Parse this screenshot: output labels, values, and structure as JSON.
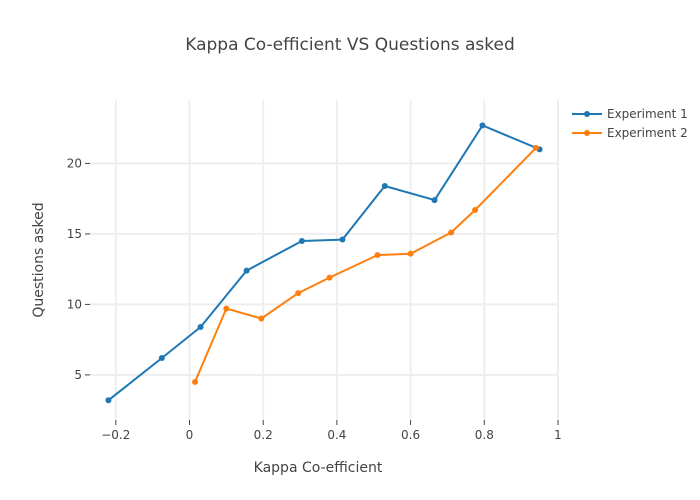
{
  "chart_data": {
    "type": "line",
    "title": "Kappa Co-efficient VS Questions asked",
    "xlabel": "Kappa Co-efficient",
    "ylabel": "Questions asked",
    "xlim": [
      -0.27,
      1.0
    ],
    "ylim": [
      1.8,
      24.5
    ],
    "x_ticks": [
      -0.2,
      0,
      0.2,
      0.4,
      0.6,
      0.8,
      1
    ],
    "x_tick_labels": [
      "−0.2",
      "0",
      "0.2",
      "0.4",
      "0.6",
      "0.8",
      "1"
    ],
    "y_ticks": [
      5,
      10,
      15,
      20
    ],
    "y_tick_labels": [
      "5",
      "10",
      "15",
      "20"
    ],
    "grid": true,
    "legend_position": "top-right",
    "series": [
      {
        "name": "Experiment 1",
        "color": "#1f77b4",
        "points": [
          {
            "x": -0.22,
            "y": 3.2
          },
          {
            "x": -0.075,
            "y": 6.2
          },
          {
            "x": 0.03,
            "y": 8.4
          },
          {
            "x": 0.155,
            "y": 12.4
          },
          {
            "x": 0.305,
            "y": 14.5
          },
          {
            "x": 0.415,
            "y": 14.6
          },
          {
            "x": 0.53,
            "y": 18.4
          },
          {
            "x": 0.665,
            "y": 17.4
          },
          {
            "x": 0.795,
            "y": 22.7
          },
          {
            "x": 0.95,
            "y": 21.0
          }
        ]
      },
      {
        "name": "Experiment 2",
        "color": "#ff7f0e",
        "points": [
          {
            "x": 0.015,
            "y": 4.5
          },
          {
            "x": 0.1,
            "y": 9.7
          },
          {
            "x": 0.195,
            "y": 9.0
          },
          {
            "x": 0.295,
            "y": 10.8
          },
          {
            "x": 0.38,
            "y": 11.9
          },
          {
            "x": 0.51,
            "y": 13.5
          },
          {
            "x": 0.6,
            "y": 13.6
          },
          {
            "x": 0.71,
            "y": 15.1
          },
          {
            "x": 0.775,
            "y": 16.7
          },
          {
            "x": 0.94,
            "y": 21.1
          }
        ]
      }
    ]
  }
}
